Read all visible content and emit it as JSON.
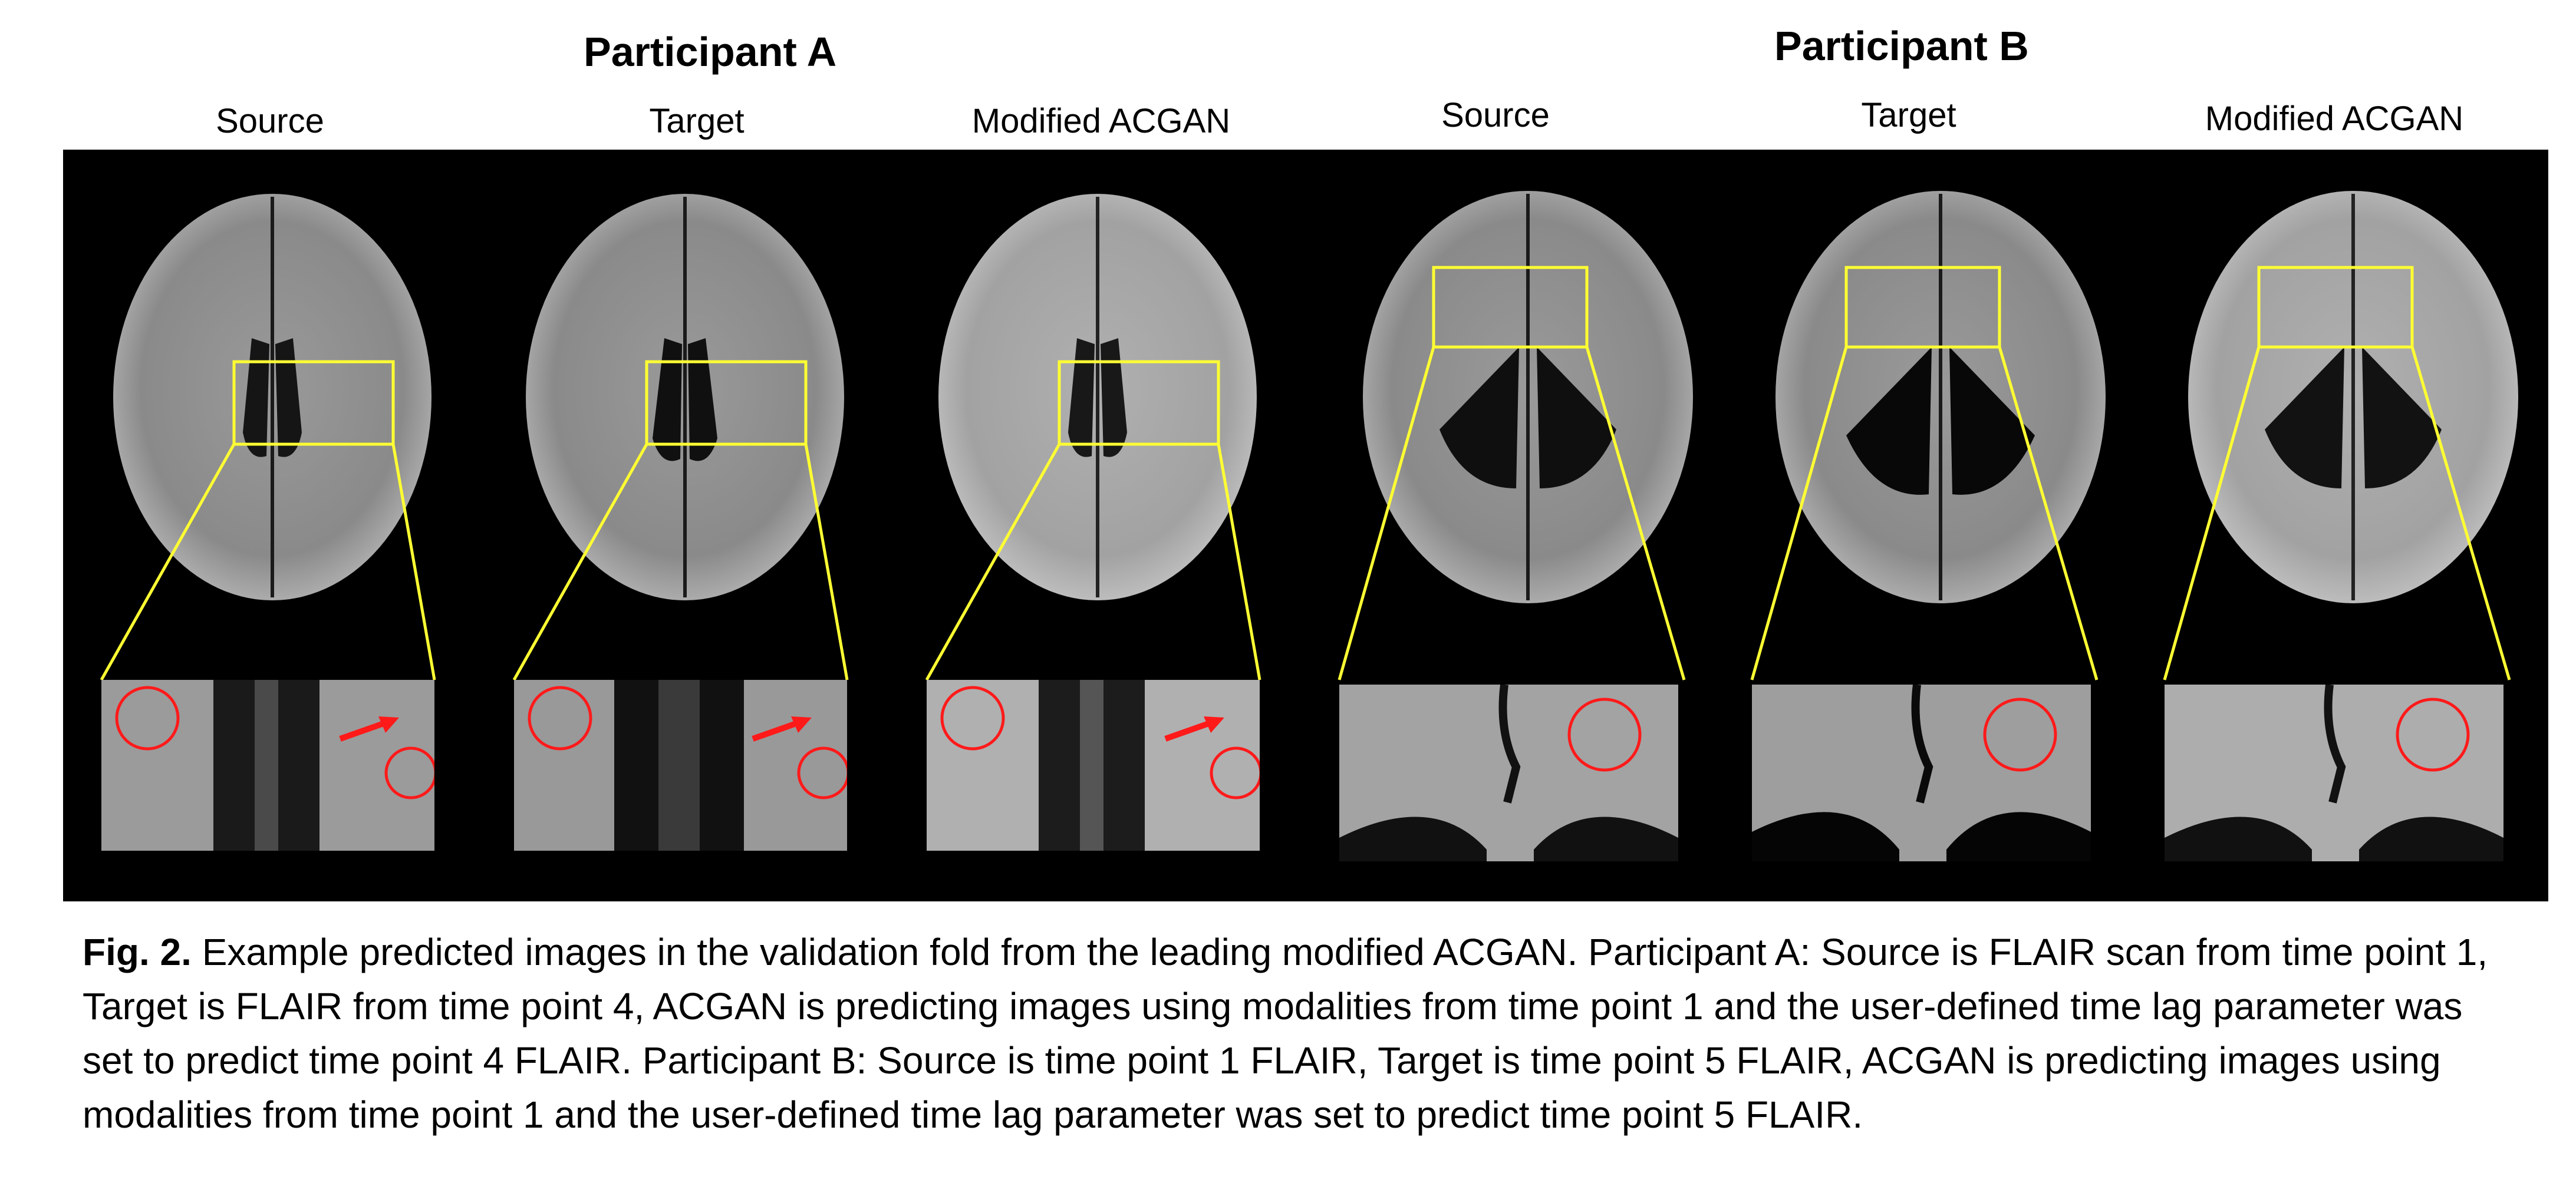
{
  "figure": {
    "groups": [
      {
        "title": "Participant A",
        "columns": [
          "Source",
          "Target",
          "Modified ACGAN"
        ]
      },
      {
        "title": "Participant B",
        "columns": [
          "Source",
          "Target",
          "Modified ACGAN"
        ]
      }
    ],
    "caption": {
      "label": "Fig. 2.",
      "text": " Example predicted images in the validation fold from the leading modified ACGAN. Participant A: Source is FLAIR scan from time point 1, Target is FLAIR from time point 4, ACGAN is predicting images using modalities from time point 1 and the user-defined time lag parameter was set to predict time point 4 FLAIR. Participant B: Source is time point 1 FLAIR, Target is time point 5 FLAIR, ACGAN is predicting images using modalities from time point 1 and the user-defined time lag parameter was set to predict time point 5 FLAIR."
    },
    "colors": {
      "highlight_box": "#ffff33",
      "lesion_circle": "#ff1a1a",
      "arrow": "#ff1a1a"
    }
  }
}
